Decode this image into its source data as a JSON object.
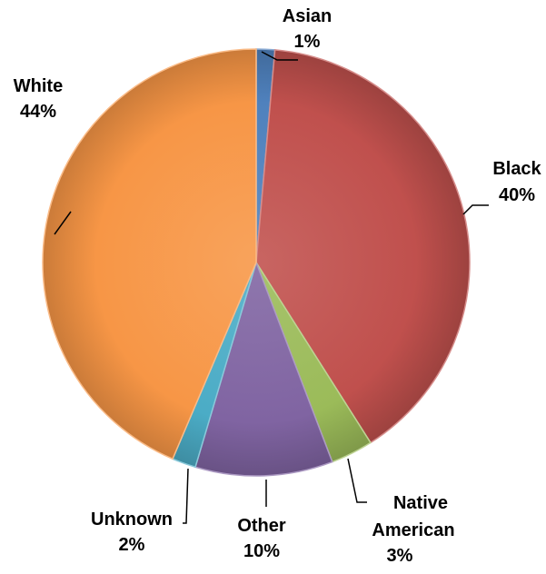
{
  "chart_data": {
    "type": "pie",
    "title": "",
    "slices": [
      {
        "label": "Asian",
        "percent_label": "1%",
        "value": 1.4,
        "color": "#4F81BD"
      },
      {
        "label": "Black",
        "percent_label": "40%",
        "value": 39.6,
        "color": "#C0504D"
      },
      {
        "label": "Native American",
        "percent_label": "3%",
        "value": 3.2,
        "color": "#9BBB59"
      },
      {
        "label": "Other",
        "percent_label": "10%",
        "value": 10.4,
        "color": "#8064A2"
      },
      {
        "label": "Unknown",
        "percent_label": "2%",
        "value": 1.8,
        "color": "#4BACC6"
      },
      {
        "label": "White",
        "percent_label": "44%",
        "value": 43.6,
        "color": "#F79646"
      }
    ],
    "start_angle_deg": 0,
    "direction": "clockwise",
    "data_labels": "outside-with-leader-lines",
    "legend": "none"
  }
}
